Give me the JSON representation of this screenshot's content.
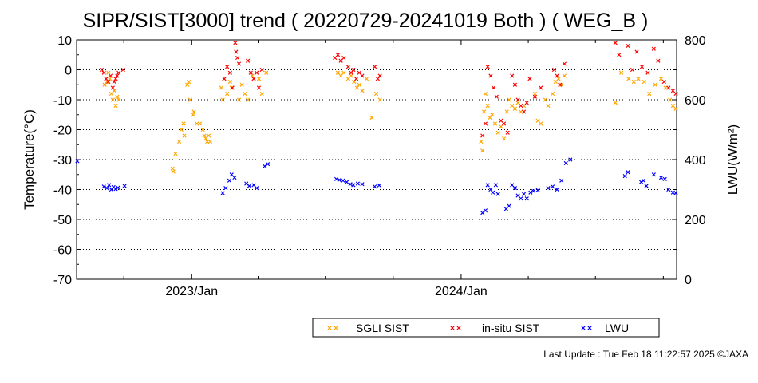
{
  "chart_data": {
    "type": "scatter",
    "title": "SIPR/SIST[3000] trend ( 20220729-20241019 Both ) ( WEG_B )",
    "xlabel": "",
    "ylabel": "Temperature(°C)",
    "y2label": "LWU(W/m²)",
    "xlim": [
      "2022-07-29",
      "2024-10-19"
    ],
    "ylim": [
      -70,
      10
    ],
    "y2lim": [
      0,
      800
    ],
    "yticks": [
      "10",
      "0",
      "-10",
      "-20",
      "-30",
      "-40",
      "-50",
      "-60",
      "-70"
    ],
    "y2ticks": [
      "800",
      "600",
      "400",
      "200",
      "0"
    ],
    "xticks": [
      "2023/Jan",
      "2024/Jan"
    ],
    "grid": true,
    "legend_position": "bottom",
    "series": [
      {
        "name": "SGLI SIST",
        "color": "#ffa500",
        "axis": "left",
        "points": [
          [
            "2022-09-05",
            -5
          ],
          [
            "2022-09-08",
            -4
          ],
          [
            "2022-09-12",
            -3
          ],
          [
            "2022-09-14",
            -8
          ],
          [
            "2022-09-16",
            -10
          ],
          [
            "2022-09-18",
            -7
          ],
          [
            "2022-09-20",
            -12
          ],
          [
            "2022-09-24",
            -10
          ],
          [
            "2022-09-10",
            -1
          ],
          [
            "2022-09-22",
            -9
          ],
          [
            "2022-12-06",
            -33
          ],
          [
            "2022-12-07",
            -34
          ],
          [
            "2022-12-10",
            -28
          ],
          [
            "2022-12-15",
            -24
          ],
          [
            "2022-12-18",
            -20
          ],
          [
            "2022-12-21",
            -18
          ],
          [
            "2022-12-22",
            -22
          ],
          [
            "2022-12-26",
            -5
          ],
          [
            "2022-12-28",
            -4
          ],
          [
            "2022-12-30",
            -10
          ],
          [
            "2023-01-03",
            -15
          ],
          [
            "2023-01-04",
            -14
          ],
          [
            "2023-01-08",
            -18
          ],
          [
            "2023-01-12",
            -18
          ],
          [
            "2023-01-16",
            -20
          ],
          [
            "2023-01-18",
            -22
          ],
          [
            "2023-01-20",
            -23
          ],
          [
            "2023-01-22",
            -24
          ],
          [
            "2023-01-24",
            -22
          ],
          [
            "2023-01-26",
            -24
          ],
          [
            "2023-02-10",
            -6
          ],
          [
            "2023-02-12",
            -10
          ],
          [
            "2023-02-14",
            -3
          ],
          [
            "2023-02-18",
            -8
          ],
          [
            "2023-02-22",
            -4
          ],
          [
            "2023-02-24",
            -6
          ],
          [
            "2023-03-06",
            -10
          ],
          [
            "2023-03-10",
            -5
          ],
          [
            "2023-03-14",
            -8
          ],
          [
            "2023-03-18",
            -10
          ],
          [
            "2023-03-24",
            -2
          ],
          [
            "2023-04-02",
            -3
          ],
          [
            "2023-04-06",
            -8
          ],
          [
            "2023-04-12",
            -1
          ],
          [
            "2023-07-18",
            -1
          ],
          [
            "2023-07-22",
            -2
          ],
          [
            "2023-07-26",
            -1
          ],
          [
            "2023-08-01",
            -3
          ],
          [
            "2023-08-05",
            -2
          ],
          [
            "2023-08-09",
            -4
          ],
          [
            "2023-08-13",
            -6
          ],
          [
            "2023-08-16",
            -5
          ],
          [
            "2023-08-20",
            -7
          ],
          [
            "2023-08-26",
            -3
          ],
          [
            "2023-09-02",
            -16
          ],
          [
            "2023-09-08",
            -8
          ],
          [
            "2023-09-13",
            -10
          ],
          [
            "2024-01-28",
            -24
          ],
          [
            "2024-01-30",
            -27
          ],
          [
            "2024-02-01",
            -14
          ],
          [
            "2024-02-03",
            -8
          ],
          [
            "2024-02-06",
            -12
          ],
          [
            "2024-02-09",
            -16
          ],
          [
            "2024-02-12",
            -15
          ],
          [
            "2024-02-16",
            -18
          ],
          [
            "2024-02-20",
            -21
          ],
          [
            "2024-02-24",
            -19
          ],
          [
            "2024-02-28",
            -23
          ],
          [
            "2024-03-03",
            -14
          ],
          [
            "2024-03-06",
            -10
          ],
          [
            "2024-03-10",
            -12
          ],
          [
            "2024-03-14",
            -13
          ],
          [
            "2024-03-18",
            -11
          ],
          [
            "2024-03-22",
            -14
          ],
          [
            "2024-03-26",
            -12
          ],
          [
            "2024-04-10",
            -8
          ],
          [
            "2024-04-14",
            -17
          ],
          [
            "2024-04-18",
            -18
          ],
          [
            "2024-04-24",
            -10
          ],
          [
            "2024-04-28",
            -12
          ],
          [
            "2024-05-04",
            -8
          ],
          [
            "2024-05-08",
            -4
          ],
          [
            "2024-05-12",
            -3
          ],
          [
            "2024-05-16",
            -5
          ],
          [
            "2024-05-20",
            -2
          ],
          [
            "2024-07-28",
            -11
          ],
          [
            "2024-08-05",
            -1
          ],
          [
            "2024-08-15",
            -3
          ],
          [
            "2024-08-22",
            -4
          ],
          [
            "2024-08-28",
            -3
          ],
          [
            "2024-09-05",
            -4
          ],
          [
            "2024-09-12",
            -8
          ],
          [
            "2024-09-20",
            -5
          ],
          [
            "2024-09-28",
            -3
          ],
          [
            "2024-10-04",
            -6
          ],
          [
            "2024-10-10",
            -10
          ],
          [
            "2024-10-14",
            -12
          ],
          [
            "2024-10-18",
            -13
          ]
        ]
      },
      {
        "name": "in-situ SIST",
        "color": "#ff0000",
        "axis": "left",
        "points": [
          [
            "2022-09-01",
            0
          ],
          [
            "2022-09-04",
            -1
          ],
          [
            "2022-09-07",
            -3
          ],
          [
            "2022-09-10",
            -4
          ],
          [
            "2022-09-13",
            -2
          ],
          [
            "2022-09-16",
            -6
          ],
          [
            "2022-09-18",
            -4
          ],
          [
            "2022-09-20",
            -3
          ],
          [
            "2022-09-22",
            -2
          ],
          [
            "2022-09-24",
            -1
          ],
          [
            "2022-09-30",
            0
          ],
          [
            "2023-02-14",
            -3
          ],
          [
            "2023-02-18",
            1
          ],
          [
            "2023-02-22",
            -1
          ],
          [
            "2023-02-25",
            -6
          ],
          [
            "2023-03-01",
            9
          ],
          [
            "2023-03-02",
            6
          ],
          [
            "2023-03-04",
            4
          ],
          [
            "2023-03-06",
            2
          ],
          [
            "2023-03-18",
            3
          ],
          [
            "2023-03-22",
            -1
          ],
          [
            "2023-03-26",
            -3
          ],
          [
            "2023-03-30",
            -1
          ],
          [
            "2023-04-02",
            -6
          ],
          [
            "2023-04-06",
            0
          ],
          [
            "2023-07-14",
            4
          ],
          [
            "2023-07-18",
            5
          ],
          [
            "2023-07-22",
            3
          ],
          [
            "2023-07-26",
            4
          ],
          [
            "2023-08-01",
            1
          ],
          [
            "2023-08-05",
            -1
          ],
          [
            "2023-08-08",
            0
          ],
          [
            "2023-08-12",
            -3
          ],
          [
            "2023-08-16",
            -1
          ],
          [
            "2023-08-20",
            -2
          ],
          [
            "2023-09-06",
            1
          ],
          [
            "2023-09-10",
            -3
          ],
          [
            "2023-09-13",
            -2
          ],
          [
            "2024-01-30",
            -22
          ],
          [
            "2024-02-03",
            -18
          ],
          [
            "2024-02-06",
            1
          ],
          [
            "2024-02-10",
            -2
          ],
          [
            "2024-02-14",
            -6
          ],
          [
            "2024-02-18",
            -9
          ],
          [
            "2024-02-24",
            -17
          ],
          [
            "2024-02-28",
            -18
          ],
          [
            "2024-03-04",
            -21
          ],
          [
            "2024-03-10",
            -2
          ],
          [
            "2024-03-14",
            -5
          ],
          [
            "2024-03-18",
            -10
          ],
          [
            "2024-03-22",
            -12
          ],
          [
            "2024-03-26",
            -14
          ],
          [
            "2024-03-30",
            -11
          ],
          [
            "2024-04-03",
            -3
          ],
          [
            "2024-04-10",
            -9
          ],
          [
            "2024-04-18",
            -6
          ],
          [
            "2024-05-06",
            0
          ],
          [
            "2024-05-10",
            -2
          ],
          [
            "2024-05-14",
            -5
          ],
          [
            "2024-05-20",
            2
          ],
          [
            "2024-07-28",
            9
          ],
          [
            "2024-08-02",
            5
          ],
          [
            "2024-08-14",
            8
          ],
          [
            "2024-08-20",
            0
          ],
          [
            "2024-08-26",
            6
          ],
          [
            "2024-09-02",
            1
          ],
          [
            "2024-09-10",
            -1
          ],
          [
            "2024-09-18",
            7
          ],
          [
            "2024-09-24",
            3
          ],
          [
            "2024-10-02",
            -4
          ],
          [
            "2024-10-08",
            -6
          ],
          [
            "2024-10-14",
            -7
          ],
          [
            "2024-10-18",
            -8
          ]
        ]
      },
      {
        "name": "LWU",
        "color": "#0000ff",
        "axis": "right",
        "points": [
          [
            "2022-07-30",
            395
          ],
          [
            "2022-09-04",
            310
          ],
          [
            "2022-09-08",
            305
          ],
          [
            "2022-09-11",
            315
          ],
          [
            "2022-09-14",
            300
          ],
          [
            "2022-09-17",
            308
          ],
          [
            "2022-09-20",
            302
          ],
          [
            "2022-09-23",
            306
          ],
          [
            "2022-10-02",
            312
          ],
          [
            "2023-02-12",
            288
          ],
          [
            "2023-02-16",
            305
          ],
          [
            "2023-02-21",
            330
          ],
          [
            "2023-02-24",
            350
          ],
          [
            "2023-02-28",
            340
          ],
          [
            "2023-03-16",
            320
          ],
          [
            "2023-03-20",
            312
          ],
          [
            "2023-03-26",
            315
          ],
          [
            "2023-03-30",
            305
          ],
          [
            "2023-04-10",
            378
          ],
          [
            "2023-04-14",
            385
          ],
          [
            "2023-07-16",
            335
          ],
          [
            "2023-07-20",
            332
          ],
          [
            "2023-07-25",
            330
          ],
          [
            "2023-07-30",
            325
          ],
          [
            "2023-08-04",
            318
          ],
          [
            "2023-08-08",
            315
          ],
          [
            "2023-08-14",
            320
          ],
          [
            "2023-08-20",
            318
          ],
          [
            "2023-09-06",
            310
          ],
          [
            "2023-09-12",
            314
          ],
          [
            "2024-01-30",
            222
          ],
          [
            "2024-02-03",
            230
          ],
          [
            "2024-02-06",
            315
          ],
          [
            "2024-02-10",
            300
          ],
          [
            "2024-02-13",
            290
          ],
          [
            "2024-02-17",
            315
          ],
          [
            "2024-02-20",
            285
          ],
          [
            "2024-03-02",
            235
          ],
          [
            "2024-03-06",
            245
          ],
          [
            "2024-03-10",
            315
          ],
          [
            "2024-03-14",
            305
          ],
          [
            "2024-03-18",
            280
          ],
          [
            "2024-03-22",
            270
          ],
          [
            "2024-03-26",
            285
          ],
          [
            "2024-03-30",
            270
          ],
          [
            "2024-04-04",
            290
          ],
          [
            "2024-04-08",
            295
          ],
          [
            "2024-04-14",
            298
          ],
          [
            "2024-04-28",
            305
          ],
          [
            "2024-05-04",
            310
          ],
          [
            "2024-05-10",
            300
          ],
          [
            "2024-05-16",
            330
          ],
          [
            "2024-05-22",
            388
          ],
          [
            "2024-05-28",
            400
          ],
          [
            "2024-08-10",
            345
          ],
          [
            "2024-08-14",
            358
          ],
          [
            "2024-09-01",
            325
          ],
          [
            "2024-09-04",
            330
          ],
          [
            "2024-09-08",
            312
          ],
          [
            "2024-09-18",
            350
          ],
          [
            "2024-09-28",
            340
          ],
          [
            "2024-10-03",
            335
          ],
          [
            "2024-10-08",
            300
          ],
          [
            "2024-10-14",
            290
          ],
          [
            "2024-10-18",
            288
          ]
        ]
      }
    ]
  },
  "footer": {
    "last_update": "Last Update : Tue Feb 18 11:22:57 2025 ©JAXA"
  }
}
